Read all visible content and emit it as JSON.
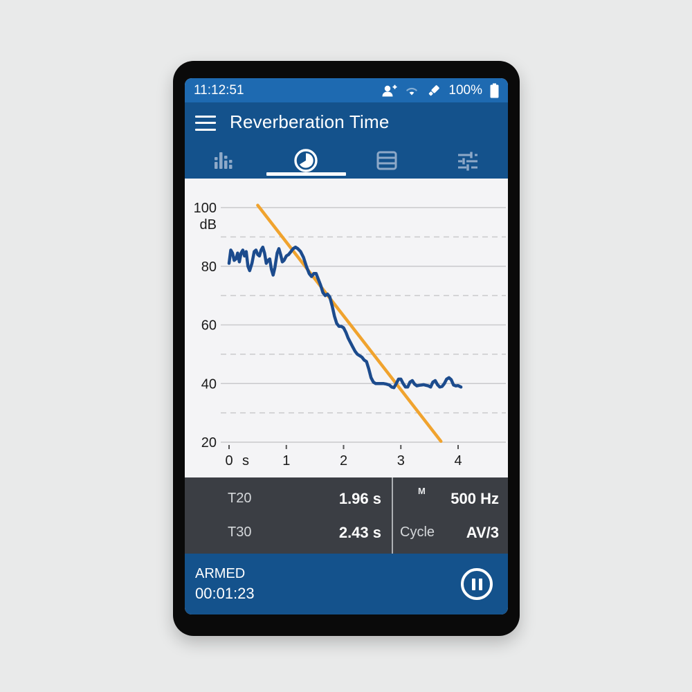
{
  "status_bar": {
    "time": "11:12:51",
    "battery_pct": "100%",
    "icons": [
      "person-add-icon",
      "wifi-icon",
      "usb-stick-icon",
      "battery-icon"
    ]
  },
  "header": {
    "title": "Reverberation Time",
    "menu_icon": "hamburger-menu-icon"
  },
  "tabs": [
    {
      "name": "spectrum",
      "icon": "rta-bars-icon",
      "selected": false
    },
    {
      "name": "decay-time",
      "icon": "clock-pie-icon",
      "selected": true
    },
    {
      "name": "results-table",
      "icon": "table-rows-icon",
      "selected": false
    },
    {
      "name": "settings",
      "icon": "tune-sliders-icon",
      "selected": false
    }
  ],
  "chart_data": {
    "type": "line",
    "title": "",
    "xlabel": "s",
    "ylabel": "dB",
    "x_unit": "s",
    "xlim": [
      0,
      4.83
    ],
    "ylim": [
      11,
      110
    ],
    "x_ticks": [
      0,
      1,
      2,
      3,
      4
    ],
    "y_ticks_solid": [
      100,
      80,
      60,
      40,
      20
    ],
    "y_ticks_dashed": [
      90,
      70,
      50,
      30
    ],
    "grid": true,
    "legend": "none",
    "colors": {
      "decay": "#1c4b8d",
      "regression": "#f0a32e",
      "grid": "#c9c9cc",
      "tick": "#555555",
      "label": "#1a1a1a"
    },
    "series": [
      {
        "name": "regression-line",
        "color": "#f0a32e",
        "width": 4.5,
        "points": [
          [
            0.5,
            100.8
          ],
          [
            3.7,
            20.3
          ]
        ]
      },
      {
        "name": "decay-curve",
        "color": "#1c4b8d",
        "width": 4.5,
        "points": [
          [
            0.0,
            81
          ],
          [
            0.03,
            85.5
          ],
          [
            0.06,
            84.5
          ],
          [
            0.09,
            82
          ],
          [
            0.12,
            82.5
          ],
          [
            0.15,
            84.5
          ],
          [
            0.18,
            81.5
          ],
          [
            0.21,
            84.5
          ],
          [
            0.24,
            85.5
          ],
          [
            0.27,
            83.5
          ],
          [
            0.3,
            85
          ],
          [
            0.33,
            80
          ],
          [
            0.36,
            78.5
          ],
          [
            0.4,
            81
          ],
          [
            0.44,
            85
          ],
          [
            0.47,
            85.5
          ],
          [
            0.5,
            84
          ],
          [
            0.53,
            83.5
          ],
          [
            0.56,
            85.5
          ],
          [
            0.59,
            86.5
          ],
          [
            0.62,
            84.5
          ],
          [
            0.65,
            81
          ],
          [
            0.68,
            82
          ],
          [
            0.71,
            82.5
          ],
          [
            0.74,
            79
          ],
          [
            0.77,
            77
          ],
          [
            0.8,
            79.5
          ],
          [
            0.84,
            84.5
          ],
          [
            0.87,
            86
          ],
          [
            0.9,
            84
          ],
          [
            0.93,
            81.5
          ],
          [
            0.96,
            82
          ],
          [
            1.0,
            83.5
          ],
          [
            1.04,
            84
          ],
          [
            1.08,
            85
          ],
          [
            1.12,
            86
          ],
          [
            1.16,
            86.5
          ],
          [
            1.2,
            86
          ],
          [
            1.25,
            85
          ],
          [
            1.3,
            83
          ],
          [
            1.35,
            80
          ],
          [
            1.4,
            77.5
          ],
          [
            1.44,
            76.5
          ],
          [
            1.48,
            77.5
          ],
          [
            1.52,
            77.5
          ],
          [
            1.56,
            75.5
          ],
          [
            1.6,
            73.5
          ],
          [
            1.64,
            71
          ],
          [
            1.68,
            70
          ],
          [
            1.72,
            70.5
          ],
          [
            1.76,
            69.5
          ],
          [
            1.8,
            66.5
          ],
          [
            1.84,
            63
          ],
          [
            1.88,
            60.5
          ],
          [
            1.92,
            59.5
          ],
          [
            1.96,
            59.5
          ],
          [
            2.0,
            59
          ],
          [
            2.04,
            57.5
          ],
          [
            2.08,
            55.5
          ],
          [
            2.12,
            54
          ],
          [
            2.16,
            52.5
          ],
          [
            2.2,
            51
          ],
          [
            2.24,
            50
          ],
          [
            2.28,
            49.5
          ],
          [
            2.32,
            49
          ],
          [
            2.36,
            48
          ],
          [
            2.4,
            47.5
          ],
          [
            2.44,
            45
          ],
          [
            2.48,
            42
          ],
          [
            2.52,
            40.5
          ],
          [
            2.56,
            40
          ],
          [
            2.6,
            40
          ],
          [
            2.65,
            40
          ],
          [
            2.7,
            40
          ],
          [
            2.75,
            39.8
          ],
          [
            2.8,
            39.5
          ],
          [
            2.84,
            38.8
          ],
          [
            2.88,
            38.6
          ],
          [
            2.92,
            40
          ],
          [
            2.96,
            41.5
          ],
          [
            3.0,
            41.5
          ],
          [
            3.04,
            40
          ],
          [
            3.08,
            38.8
          ],
          [
            3.12,
            38.8
          ],
          [
            3.16,
            40.5
          ],
          [
            3.2,
            41
          ],
          [
            3.24,
            39.8
          ],
          [
            3.28,
            39.2
          ],
          [
            3.32,
            39.4
          ],
          [
            3.36,
            39.5
          ],
          [
            3.4,
            39.6
          ],
          [
            3.44,
            39.4
          ],
          [
            3.48,
            39.2
          ],
          [
            3.52,
            38.8
          ],
          [
            3.56,
            40.5
          ],
          [
            3.6,
            41
          ],
          [
            3.64,
            39.6
          ],
          [
            3.68,
            38.8
          ],
          [
            3.72,
            39
          ],
          [
            3.76,
            40
          ],
          [
            3.8,
            41.5
          ],
          [
            3.84,
            42
          ],
          [
            3.88,
            41.3
          ],
          [
            3.92,
            39.5
          ],
          [
            3.96,
            39.2
          ],
          [
            4.0,
            39.3
          ],
          [
            4.05,
            38.8
          ]
        ]
      }
    ]
  },
  "results": {
    "rows": [
      {
        "label": "T20",
        "value": "1.96 s"
      },
      {
        "label": "T30",
        "value": "2.43 s"
      }
    ],
    "band": {
      "marker": "M",
      "value": "500 Hz"
    },
    "cycle": {
      "label": "Cycle",
      "value": "AV/3"
    }
  },
  "footer": {
    "state": "ARMED",
    "elapsed": "00:01:23",
    "pause_icon": "pause-icon"
  },
  "colors": {
    "status_bar": "#1e6ab1",
    "header": "#14528c",
    "chart_bg": "#f4f4f6",
    "results_bg": "#3b3e44",
    "accent_blue": "#1c4b8d",
    "accent_orange": "#f0a32e",
    "inactive_tab": "#8ea9c8"
  }
}
